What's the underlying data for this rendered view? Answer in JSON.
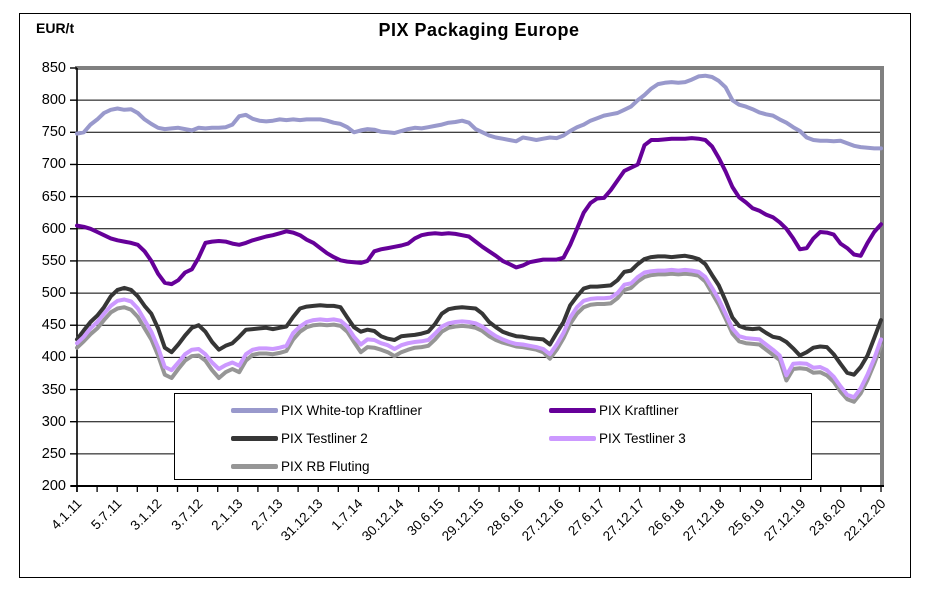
{
  "title": "PIX Packaging Europe",
  "y_axis_unit_label": "EUR/t",
  "chart_data": {
    "type": "line",
    "title": "PIX Packaging Europe",
    "ylabel": "EUR/t",
    "xlabel": "",
    "ylim": [
      200,
      850
    ],
    "y_tick_interval": 50,
    "y_ticks": [
      200,
      250,
      300,
      350,
      400,
      450,
      500,
      550,
      600,
      650,
      700,
      750,
      800,
      850
    ],
    "x_tick_labels": [
      "4.1.11",
      "5.7.11",
      "3.1.12",
      "3.7.12",
      "2.1.13",
      "2.7.13",
      "31.12.13",
      "1.7.14",
      "30.12.14",
      "30.6.15",
      "29.12.15",
      "28.6.16",
      "27.12.16",
      "27.6.17",
      "27.12.17",
      "26.6.18",
      "27.12.18",
      "25.6.19",
      "27.12.19",
      "23.6.20",
      "22.12.20"
    ],
    "x_minor_tick_interval_months": 3,
    "x_frequency": "monthly",
    "x_range": [
      "Jan 2011",
      "Dec 2020"
    ],
    "grid": "horizontal",
    "gridline_color": "#000000",
    "plot_border_color": "#808080",
    "legend_position": "bottom-inside-box",
    "legend_layout": [
      [
        "PIX White-top Kraftliner",
        "PIX Kraftliner"
      ],
      [
        "PIX Testliner 2",
        "PIX Testliner 3"
      ],
      [
        "PIX RB Fluting"
      ]
    ],
    "series": [
      {
        "name": "PIX White-top Kraftliner",
        "color": "#9999CC",
        "values": [
          748,
          750,
          762,
          770,
          780,
          785,
          787,
          785,
          786,
          780,
          770,
          763,
          757,
          755,
          756,
          757,
          755,
          753,
          757,
          756,
          757,
          757,
          758,
          762,
          775,
          777,
          771,
          768,
          767,
          768,
          770,
          769,
          770,
          769,
          770,
          770,
          770,
          768,
          765,
          763,
          758,
          750,
          753,
          755,
          754,
          751,
          750,
          749,
          752,
          755,
          757,
          756,
          758,
          760,
          762,
          765,
          766,
          768,
          765,
          755,
          750,
          745,
          742,
          740,
          738,
          736,
          742,
          740,
          738,
          740,
          742,
          741,
          745,
          752,
          758,
          762,
          768,
          772,
          776,
          778,
          780,
          785,
          790,
          800,
          808,
          818,
          825,
          827,
          828,
          827,
          828,
          832,
          837,
          838,
          836,
          830,
          820,
          800,
          793,
          790,
          786,
          781,
          778,
          776,
          770,
          765,
          758,
          752,
          742,
          738,
          737,
          737,
          736,
          737,
          733,
          729,
          727,
          726,
          725,
          725
        ]
      },
      {
        "name": "PIX Kraftliner",
        "color": "#660099",
        "values": [
          605,
          603,
          600,
          595,
          590,
          585,
          582,
          580,
          578,
          575,
          565,
          550,
          530,
          516,
          514,
          520,
          532,
          537,
          555,
          578,
          580,
          581,
          580,
          577,
          575,
          578,
          582,
          585,
          588,
          590,
          593,
          596,
          594,
          590,
          583,
          578,
          570,
          562,
          556,
          551,
          549,
          548,
          547,
          550,
          565,
          568,
          570,
          572,
          574,
          577,
          585,
          590,
          592,
          593,
          592,
          593,
          592,
          590,
          588,
          580,
          572,
          565,
          558,
          550,
          545,
          540,
          543,
          548,
          550,
          552,
          552,
          552,
          555,
          575,
          600,
          625,
          640,
          647,
          648,
          660,
          675,
          690,
          695,
          700,
          730,
          738,
          738,
          739,
          740,
          740,
          740,
          741,
          740,
          738,
          728,
          710,
          689,
          665,
          649,
          641,
          632,
          628,
          622,
          618,
          610,
          600,
          585,
          568,
          570,
          585,
          595,
          594,
          591,
          577,
          570,
          560,
          558,
          578,
          595,
          607
        ]
      },
      {
        "name": "PIX Testliner 2",
        "color": "#363636",
        "values": [
          428,
          442,
          455,
          465,
          478,
          495,
          505,
          508,
          505,
          495,
          480,
          468,
          445,
          415,
          408,
          420,
          434,
          446,
          450,
          440,
          424,
          412,
          418,
          422,
          432,
          443,
          444,
          445,
          446,
          444,
          446,
          448,
          463,
          476,
          479,
          480,
          481,
          480,
          480,
          478,
          462,
          447,
          440,
          443,
          441,
          433,
          429,
          427,
          433,
          434,
          435,
          437,
          440,
          452,
          468,
          475,
          477,
          478,
          477,
          476,
          468,
          455,
          447,
          440,
          436,
          433,
          432,
          430,
          429,
          428,
          420,
          438,
          455,
          481,
          495,
          507,
          510,
          510,
          511,
          512,
          520,
          533,
          535,
          545,
          553,
          556,
          557,
          557,
          556,
          557,
          558,
          556,
          553,
          545,
          528,
          512,
          488,
          462,
          449,
          445,
          444,
          445,
          438,
          432,
          430,
          424,
          414,
          403,
          408,
          415,
          417,
          416,
          405,
          390,
          376,
          373,
          385,
          403,
          430,
          458
        ]
      },
      {
        "name": "PIX Testliner 3",
        "color": "#CC99FF",
        "values": [
          422,
          432,
          445,
          455,
          468,
          480,
          488,
          490,
          487,
          476,
          458,
          440,
          415,
          385,
          380,
          392,
          405,
          412,
          413,
          405,
          392,
          382,
          388,
          392,
          387,
          405,
          412,
          414,
          414,
          413,
          415,
          418,
          438,
          448,
          455,
          458,
          459,
          458,
          459,
          457,
          448,
          432,
          420,
          428,
          427,
          422,
          419,
          413,
          419,
          422,
          424,
          425,
          427,
          437,
          448,
          453,
          455,
          456,
          455,
          453,
          448,
          440,
          433,
          428,
          424,
          421,
          420,
          418,
          416,
          413,
          405,
          420,
          438,
          462,
          478,
          488,
          491,
          492,
          492,
          493,
          500,
          513,
          515,
          525,
          532,
          534,
          535,
          535,
          536,
          535,
          536,
          535,
          533,
          525,
          508,
          490,
          468,
          445,
          433,
          430,
          429,
          428,
          420,
          412,
          403,
          372,
          390,
          391,
          390,
          384,
          385,
          380,
          370,
          355,
          342,
          338,
          352,
          373,
          398,
          428
        ]
      },
      {
        "name": "PIX RB Fluting",
        "color": "#969696",
        "values": [
          415,
          425,
          436,
          445,
          458,
          470,
          476,
          478,
          474,
          463,
          445,
          428,
          403,
          373,
          368,
          382,
          395,
          402,
          403,
          395,
          380,
          368,
          377,
          382,
          377,
          395,
          404,
          406,
          406,
          405,
          407,
          410,
          428,
          440,
          447,
          450,
          451,
          450,
          451,
          449,
          440,
          424,
          408,
          416,
          415,
          412,
          408,
          402,
          408,
          412,
          415,
          416,
          418,
          428,
          440,
          446,
          448,
          449,
          448,
          446,
          441,
          433,
          427,
          423,
          420,
          417,
          416,
          414,
          412,
          408,
          398,
          412,
          430,
          452,
          468,
          478,
          482,
          483,
          483,
          484,
          492,
          505,
          508,
          518,
          525,
          528,
          529,
          529,
          530,
          529,
          530,
          529,
          527,
          518,
          500,
          482,
          460,
          437,
          425,
          422,
          421,
          420,
          412,
          404,
          396,
          364,
          382,
          383,
          382,
          376,
          377,
          372,
          362,
          347,
          335,
          331,
          344,
          365,
          390,
          418
        ]
      }
    ]
  }
}
